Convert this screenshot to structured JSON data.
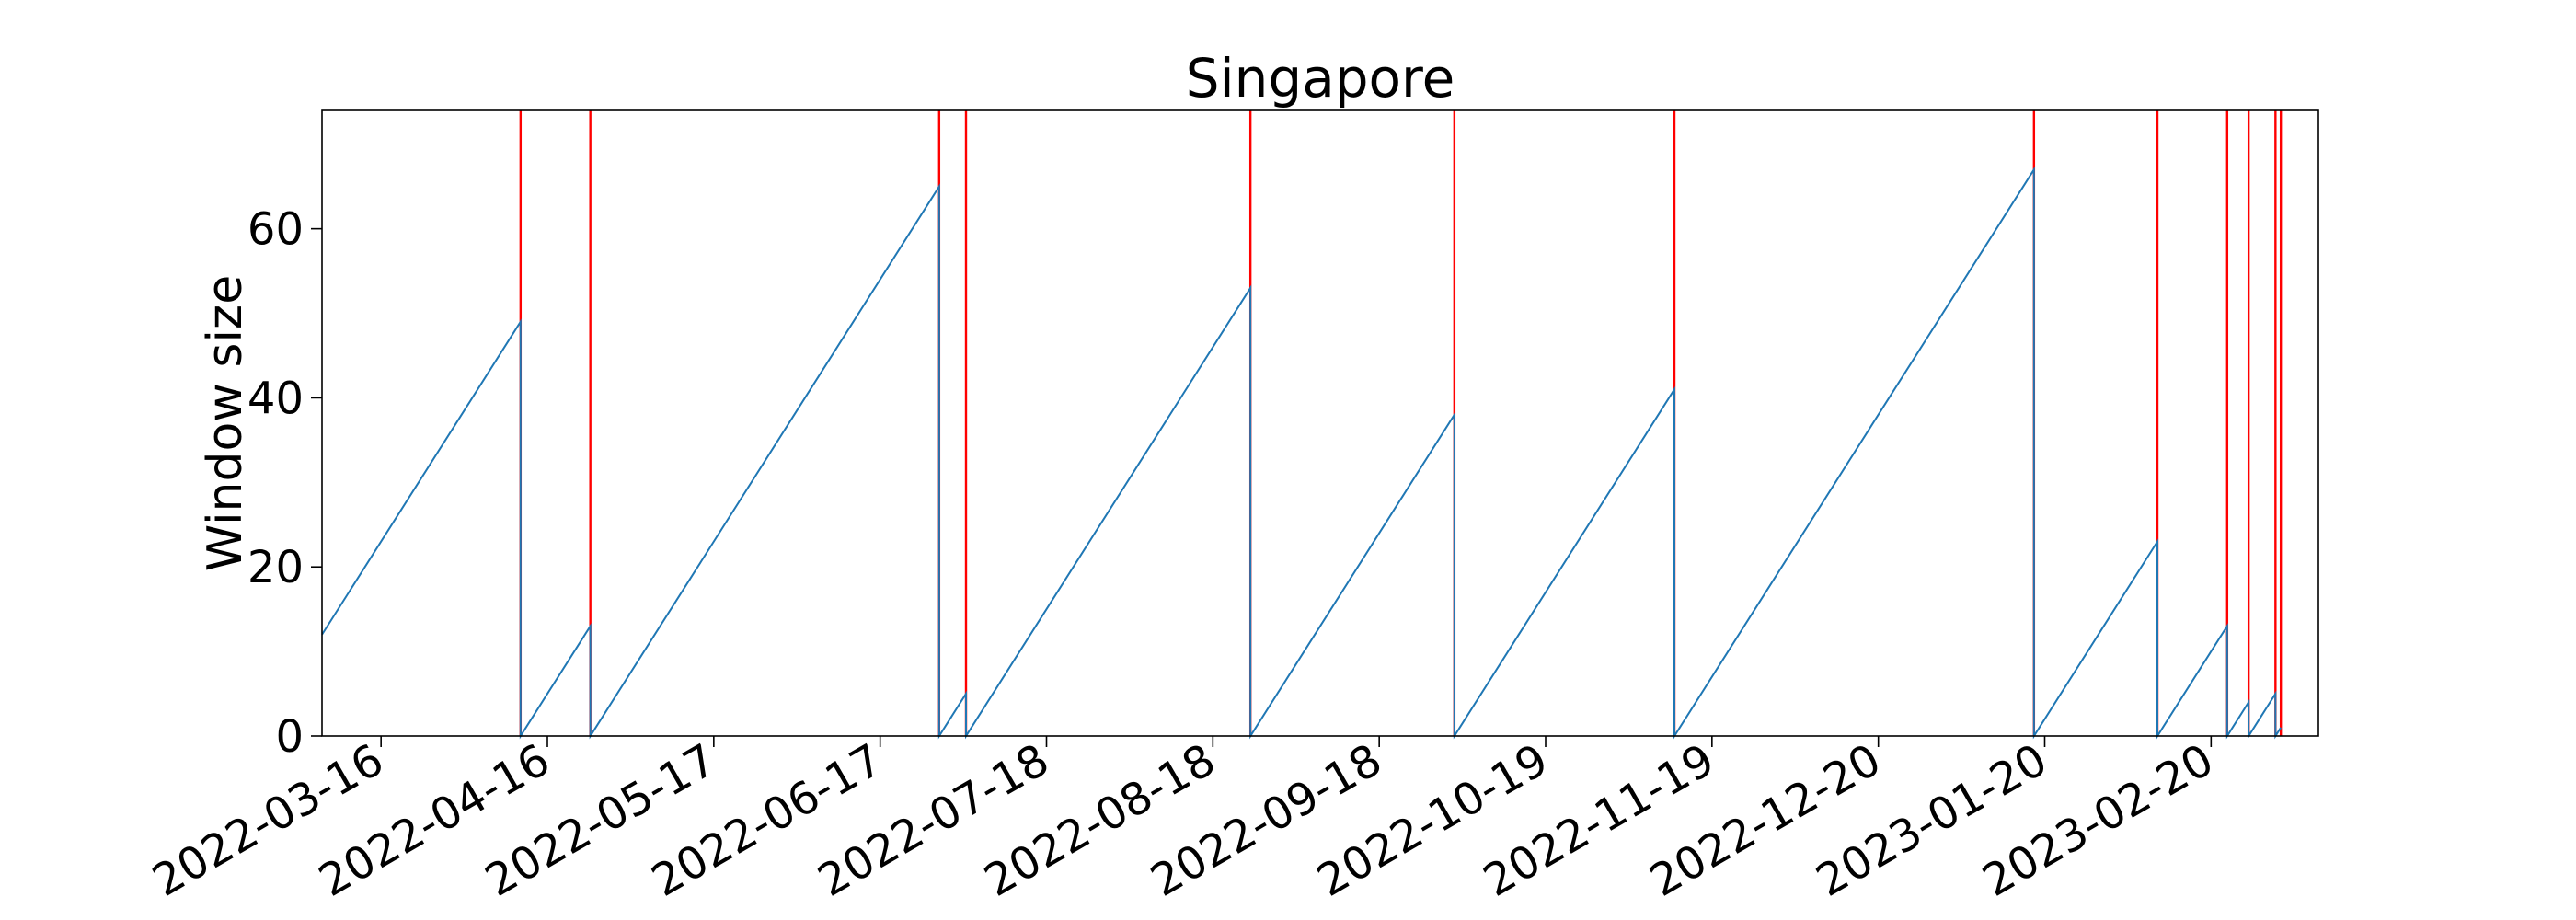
{
  "chart_data": {
    "type": "line",
    "title": "Singapore",
    "xlabel": "",
    "ylabel": "Window size",
    "xlim": [
      "2022-03-05",
      "2023-03-12"
    ],
    "ylim": [
      0,
      74
    ],
    "yticks": [
      0,
      20,
      40,
      60
    ],
    "xticks": [
      "2022-03-16",
      "2022-04-16",
      "2022-05-17",
      "2022-06-17",
      "2022-07-18",
      "2022-08-18",
      "2022-09-18",
      "2022-10-19",
      "2022-11-19",
      "2022-12-20",
      "2023-01-20",
      "2023-02-20"
    ],
    "grid": false,
    "colors": {
      "series": "#1f77b4",
      "reset_lines": "#ff0000"
    },
    "series": [
      {
        "points": [
          [
            "2022-03-05",
            12
          ],
          [
            "2022-04-11",
            49
          ],
          [
            "2022-04-11",
            0
          ],
          [
            "2022-04-24",
            13
          ],
          [
            "2022-04-24",
            0
          ],
          [
            "2022-06-28",
            65
          ],
          [
            "2022-06-28",
            0
          ],
          [
            "2022-07-03",
            5
          ],
          [
            "2022-07-03",
            0
          ],
          [
            "2022-08-25",
            53
          ],
          [
            "2022-08-25",
            0
          ],
          [
            "2022-10-02",
            38
          ],
          [
            "2022-10-02",
            0
          ],
          [
            "2022-11-12",
            41
          ],
          [
            "2022-11-12",
            0
          ],
          [
            "2023-01-18",
            67
          ],
          [
            "2023-01-18",
            0
          ],
          [
            "2023-02-10",
            23
          ],
          [
            "2023-02-10",
            0
          ],
          [
            "2023-02-23",
            13
          ],
          [
            "2023-02-23",
            0
          ],
          [
            "2023-02-27",
            4
          ],
          [
            "2023-02-27",
            0
          ],
          [
            "2023-03-04",
            5
          ],
          [
            "2023-03-04",
            0
          ],
          [
            "2023-03-05",
            1
          ]
        ]
      }
    ],
    "vlines": [
      "2022-04-11",
      "2022-04-24",
      "2022-06-28",
      "2022-07-03",
      "2022-08-25",
      "2022-10-02",
      "2022-11-12",
      "2023-01-18",
      "2023-02-10",
      "2023-02-23",
      "2023-02-27",
      "2023-03-04",
      "2023-03-05"
    ]
  }
}
